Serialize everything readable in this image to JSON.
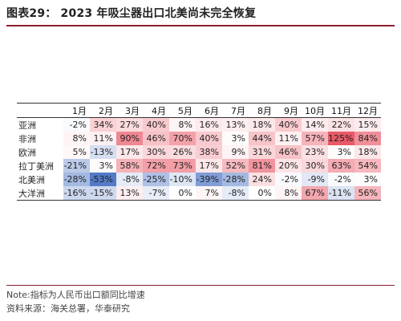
{
  "title": "图表29：  2023 年吸尘器出口北美尚未完全恢复",
  "table": {
    "columns": [
      "1月",
      "2月",
      "3月",
      "4月",
      "5月",
      "6月",
      "7月",
      "8月",
      "9月",
      "10月",
      "11月",
      "12月"
    ],
    "rows": [
      {
        "region": "亚洲",
        "values": [
          "-2%",
          "34%",
          "27%",
          "40%",
          "8%",
          "16%",
          "13%",
          "18%",
          "40%",
          "14%",
          "22%",
          "15%"
        ]
      },
      {
        "region": "非洲",
        "values": [
          "8%",
          "11%",
          "90%",
          "46%",
          "70%",
          "40%",
          "3%",
          "44%",
          "11%",
          "57%",
          "125%",
          "84%"
        ]
      },
      {
        "region": "欧洲",
        "values": [
          "5%",
          "-13%",
          "17%",
          "30%",
          "26%",
          "38%",
          "9%",
          "31%",
          "46%",
          "23%",
          "3%",
          "18%"
        ]
      },
      {
        "region": "拉丁美洲",
        "values": [
          "-21%",
          "3%",
          "58%",
          "72%",
          "73%",
          "17%",
          "52%",
          "81%",
          "20%",
          "30%",
          "63%",
          "54%"
        ]
      },
      {
        "region": "北美洲",
        "values": [
          "-28%",
          "-53%",
          "-8%",
          "-25%",
          "-10%",
          "-39%",
          "-28%",
          "24%",
          "-2%",
          "-9%",
          "-2%",
          "3%"
        ]
      },
      {
        "region": "大洋洲",
        "values": [
          "-16%",
          "-15%",
          "13%",
          "-7%",
          "0%",
          "7%",
          "-8%",
          "0%",
          "8%",
          "67%",
          "-11%",
          "56%"
        ]
      }
    ],
    "colors": {
      "positive": "#e8505f",
      "negative": "#4a73c4",
      "neutral": "#ffffff"
    }
  },
  "footer": {
    "note": "Note:指标为人民币出口额同比增速",
    "source": "资料来源：海关总署，华泰研究"
  }
}
